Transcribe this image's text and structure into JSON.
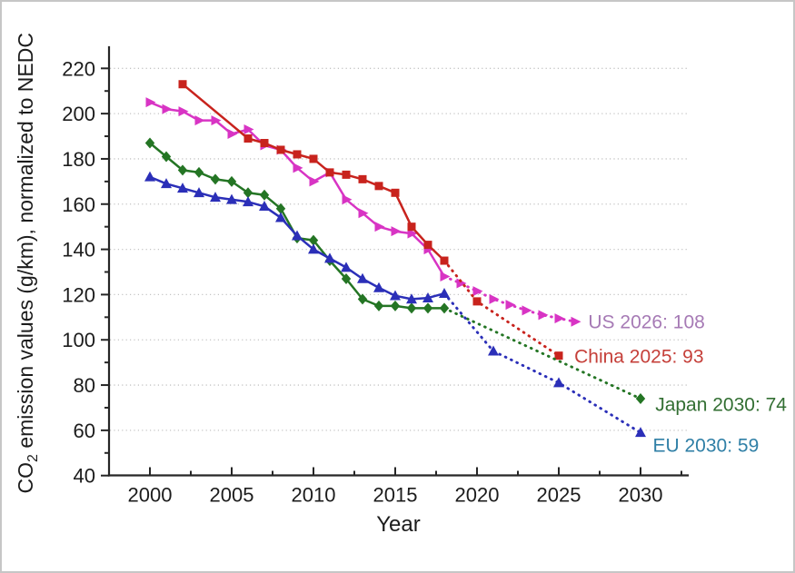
{
  "chart_data": {
    "type": "line",
    "title": "",
    "xlabel": "Year",
    "ylabel": "CO2 emission values (g/km), normalized to NEDC",
    "ylabel_parts": {
      "pre": "CO",
      "sub": "2",
      "post": " emission values (g/km), normalized to NEDC"
    },
    "x_ticks": [
      2000,
      2005,
      2010,
      2015,
      2020,
      2025,
      2030
    ],
    "x_minor_ticks": [
      2002.5,
      2007.5,
      2012.5,
      2017.5,
      2022.5,
      2027.5,
      2032.5
    ],
    "y_ticks": [
      220,
      200,
      180,
      160,
      140,
      120,
      100,
      80,
      60,
      40
    ],
    "y_minor_ticks": [
      210,
      190,
      170,
      150,
      130,
      110,
      90,
      70,
      50
    ],
    "grid_values": [
      220,
      200,
      180,
      160,
      140,
      120,
      100,
      80,
      60
    ],
    "xlim": [
      1997.5,
      2033
    ],
    "ylim": [
      40,
      229
    ],
    "grid": "horizontal-dotted",
    "legend_position": "inline-annotations",
    "axis_color": "#262626",
    "grid_color": "#c3c3c3",
    "series": [
      {
        "name": "US",
        "color": "#d834c4",
        "marker": "triangle-right",
        "solid": [
          [
            2000,
            205
          ],
          [
            2001,
            202
          ],
          [
            2002,
            201
          ],
          [
            2003,
            197
          ],
          [
            2004,
            197
          ],
          [
            2005,
            191
          ],
          [
            2006,
            193
          ],
          [
            2007,
            186
          ],
          [
            2008,
            184
          ],
          [
            2009,
            176
          ],
          [
            2010,
            170
          ],
          [
            2011,
            174
          ],
          [
            2012,
            162
          ],
          [
            2013,
            156
          ],
          [
            2014,
            150
          ],
          [
            2015,
            148
          ],
          [
            2016,
            147
          ],
          [
            2017,
            140
          ],
          [
            2018,
            128
          ]
        ],
        "dotted": [
          [
            2018,
            128
          ],
          [
            2019,
            125
          ],
          [
            2020,
            121.5
          ],
          [
            2021,
            118
          ],
          [
            2022,
            115.5
          ],
          [
            2023,
            113
          ],
          [
            2024,
            111
          ],
          [
            2025,
            109.5
          ],
          [
            2026,
            108
          ]
        ],
        "dotted_marker_years": [
          2019,
          2020,
          2021,
          2022,
          2023,
          2024,
          2025,
          2026
        ],
        "annotation": {
          "text": "US 2026: 108",
          "year": 2026.8,
          "value": 108,
          "color": "#a67ab5"
        }
      },
      {
        "name": "China",
        "color": "#c8231d",
        "marker": "square",
        "solid": [
          [
            2002,
            213
          ],
          [
            2006,
            189
          ],
          [
            2007,
            187
          ],
          [
            2008,
            184
          ],
          [
            2009,
            182
          ],
          [
            2010,
            180
          ],
          [
            2011,
            174
          ],
          [
            2012,
            173
          ],
          [
            2013,
            171
          ],
          [
            2014,
            168
          ],
          [
            2015,
            165
          ],
          [
            2016,
            150
          ],
          [
            2017,
            142
          ],
          [
            2018,
            135
          ]
        ],
        "dotted": [
          [
            2018,
            135
          ],
          [
            2020,
            117
          ],
          [
            2025,
            93
          ]
        ],
        "dotted_marker_years": [
          2020,
          2025
        ],
        "annotation": {
          "text": "China 2025: 93",
          "year": 2025.95,
          "value": 92.6,
          "color": "#c53f39"
        }
      },
      {
        "name": "Japan",
        "color": "#247524",
        "marker": "diamond",
        "solid": [
          [
            2000,
            187
          ],
          [
            2001,
            181
          ],
          [
            2002,
            175
          ],
          [
            2003,
            174
          ],
          [
            2004,
            171
          ],
          [
            2005,
            170
          ],
          [
            2006,
            165
          ],
          [
            2007,
            164
          ],
          [
            2008,
            158
          ],
          [
            2009,
            145
          ],
          [
            2010,
            144
          ],
          [
            2011,
            135
          ],
          [
            2012,
            127
          ],
          [
            2013,
            118
          ],
          [
            2014,
            115
          ],
          [
            2015,
            115
          ],
          [
            2016,
            114
          ],
          [
            2017,
            114
          ],
          [
            2018,
            114
          ]
        ],
        "dotted": [
          [
            2018,
            114
          ],
          [
            2030,
            74
          ]
        ],
        "dotted_marker_years": [
          2030
        ],
        "annotation": {
          "text": "Japan 2030: 74",
          "year": 2030.9,
          "value": 71.4,
          "color": "#336f33"
        }
      },
      {
        "name": "EU",
        "color": "#2b2fb8",
        "marker": "triangle-up",
        "solid": [
          [
            2000,
            172
          ],
          [
            2001,
            169
          ],
          [
            2002,
            167
          ],
          [
            2003,
            165
          ],
          [
            2004,
            163
          ],
          [
            2005,
            162
          ],
          [
            2006,
            161
          ],
          [
            2007,
            159
          ],
          [
            2008,
            154
          ],
          [
            2009,
            146
          ],
          [
            2010,
            140
          ],
          [
            2011,
            136
          ],
          [
            2012,
            132
          ],
          [
            2013,
            127
          ],
          [
            2014,
            123
          ],
          [
            2015,
            119.5
          ],
          [
            2016,
            118
          ],
          [
            2017,
            118.5
          ],
          [
            2018,
            120.5
          ]
        ],
        "dotted": [
          [
            2018,
            120.5
          ],
          [
            2021,
            95
          ],
          [
            2025,
            81
          ],
          [
            2030,
            59
          ]
        ],
        "dotted_marker_years": [
          2021,
          2025,
          2030
        ],
        "annotation": {
          "text": "EU 2030: 59",
          "year": 2030.75,
          "value": 53.3,
          "color": "#2f7fa6"
        }
      }
    ]
  }
}
